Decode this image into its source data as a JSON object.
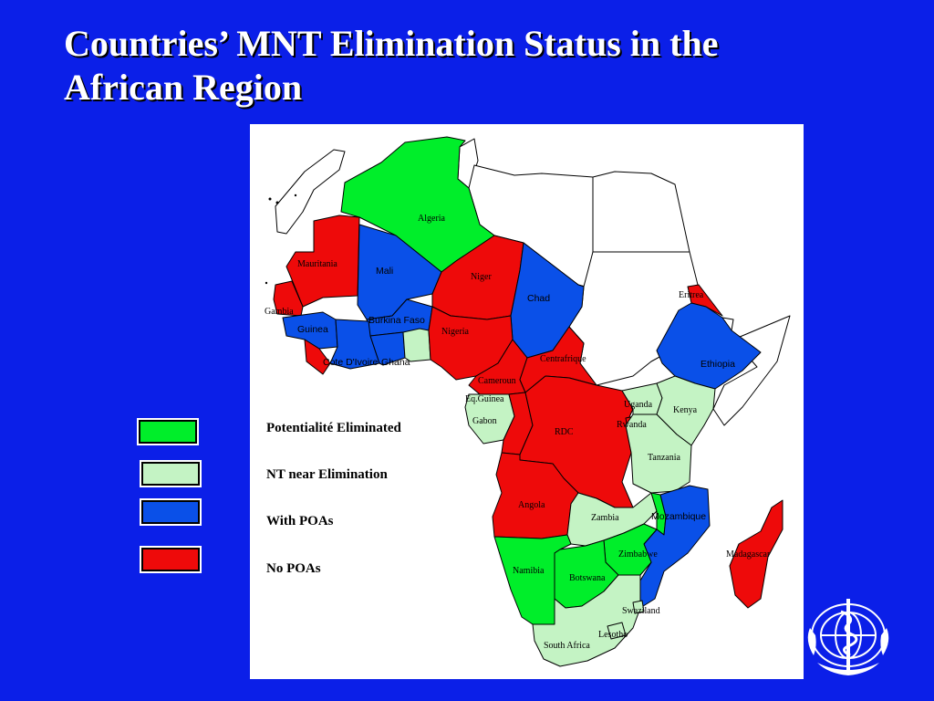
{
  "title": {
    "line1": "Countries’ MNT Elimination Status in the",
    "line2": "African Region"
  },
  "colors": {
    "background": "#0b1fe8",
    "eliminated": "#00ee2a",
    "near_elimination": "#c4f3c4",
    "with_poas": "#0a50e8",
    "no_poas": "#ee0a0a",
    "not_included": "#ffffff"
  },
  "legend": [
    {
      "label": "Potentialité Eliminated",
      "color": "#00ee2a"
    },
    {
      "label": "NT near Elimination",
      "color": "#c4f3c4"
    },
    {
      "label": "With POAs",
      "color": "#0a50e8"
    },
    {
      "label": "No POAs",
      "color": "#ee0a0a"
    }
  ],
  "map": {
    "labels": {
      "algeria": "Algeria",
      "mauritania": "Mauritania",
      "mali": "Mali",
      "niger": "Niger",
      "chad": "Chad",
      "eritrea": "Eritrea",
      "gambia": "Gambia",
      "guinea": "Guinea",
      "burkina": "Burkina Faso",
      "nigeria": "Nigeria",
      "ethiopia": "Ethiopia",
      "cote": "Cote D'Ivoire",
      "ghana": "Ghana",
      "centrafrique": "Centrafrique",
      "cameroun": "Cameroun",
      "eqguinea": "Eq.Guinea",
      "uganda": "Uganda",
      "kenya": "Kenya",
      "gabon": "Gabon",
      "rwanda": "Rwanda",
      "rdc": "RDC",
      "tanzania": "Tanzania",
      "angola": "Angola",
      "zambia": "Zambia",
      "mozambique": "Mozambique",
      "madagascar": "Madagascar",
      "zimbabwe": "Zimbabwe",
      "namibia": "Namibia",
      "botswana": "Botswana",
      "swaziland": "Swaziland",
      "lesotho": "Lesotho",
      "south_africa": "South Africa"
    }
  },
  "logo": {
    "name": "who-emblem"
  }
}
